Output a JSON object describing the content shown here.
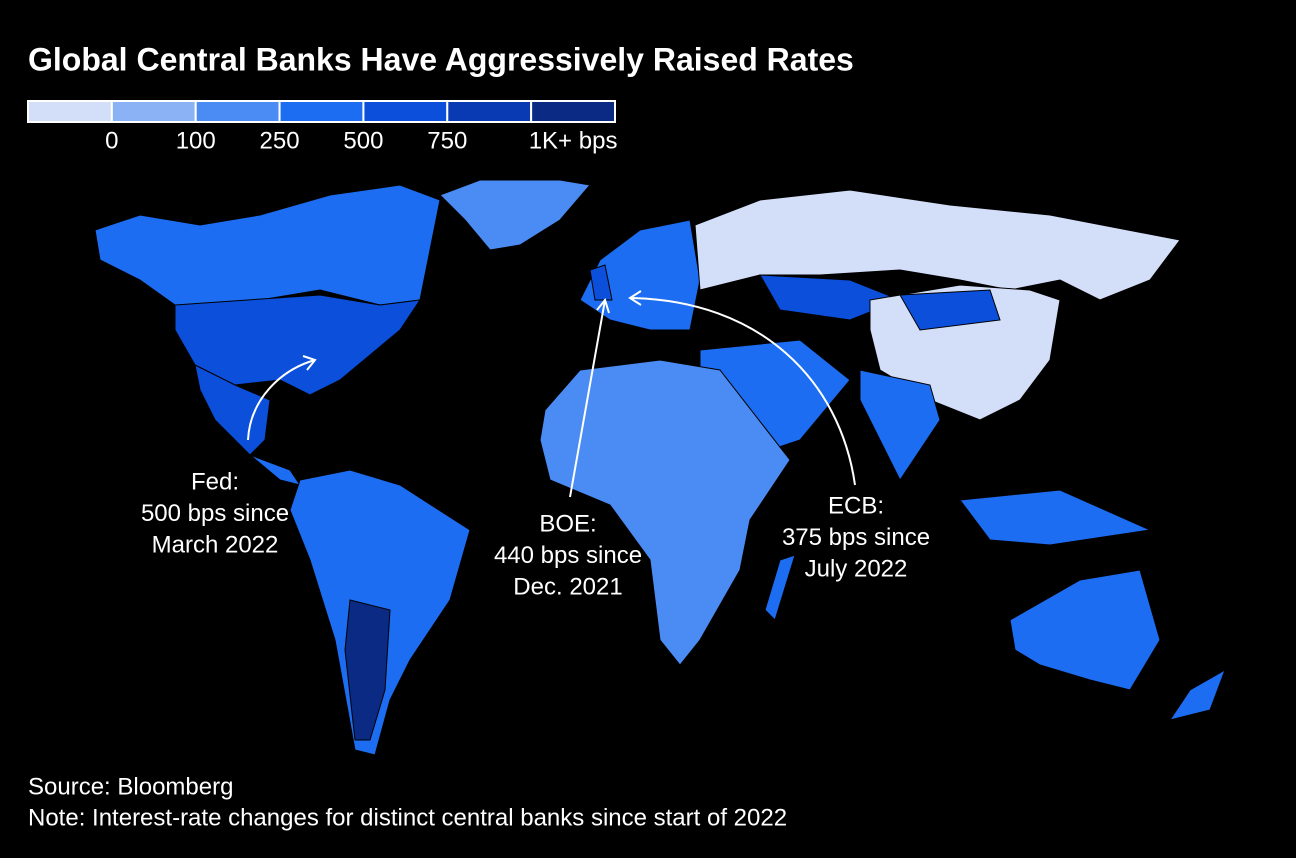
{
  "title": "Global Central Banks Have Aggressively Raised Rates",
  "legend": {
    "colors": [
      "#d3def9",
      "#8cb2f6",
      "#4b8cf4",
      "#1c6df2",
      "#0b4fdb",
      "#0a39b4",
      "#0b2a84"
    ],
    "labels": [
      "0",
      "100",
      "250",
      "500",
      "750",
      "1K+ bps"
    ]
  },
  "annotations": [
    {
      "lines": [
        "Fed:",
        "500 bps since",
        "March 2022"
      ]
    },
    {
      "lines": [
        "BOE:",
        "440 bps since",
        "Dec. 2021"
      ]
    },
    {
      "lines": [
        "ECB:",
        "375 bps since",
        "July 2022"
      ]
    }
  ],
  "source": "Source: Bloomberg",
  "note": "Note: Interest-rate changes for distinct central banks since start of 2022"
}
